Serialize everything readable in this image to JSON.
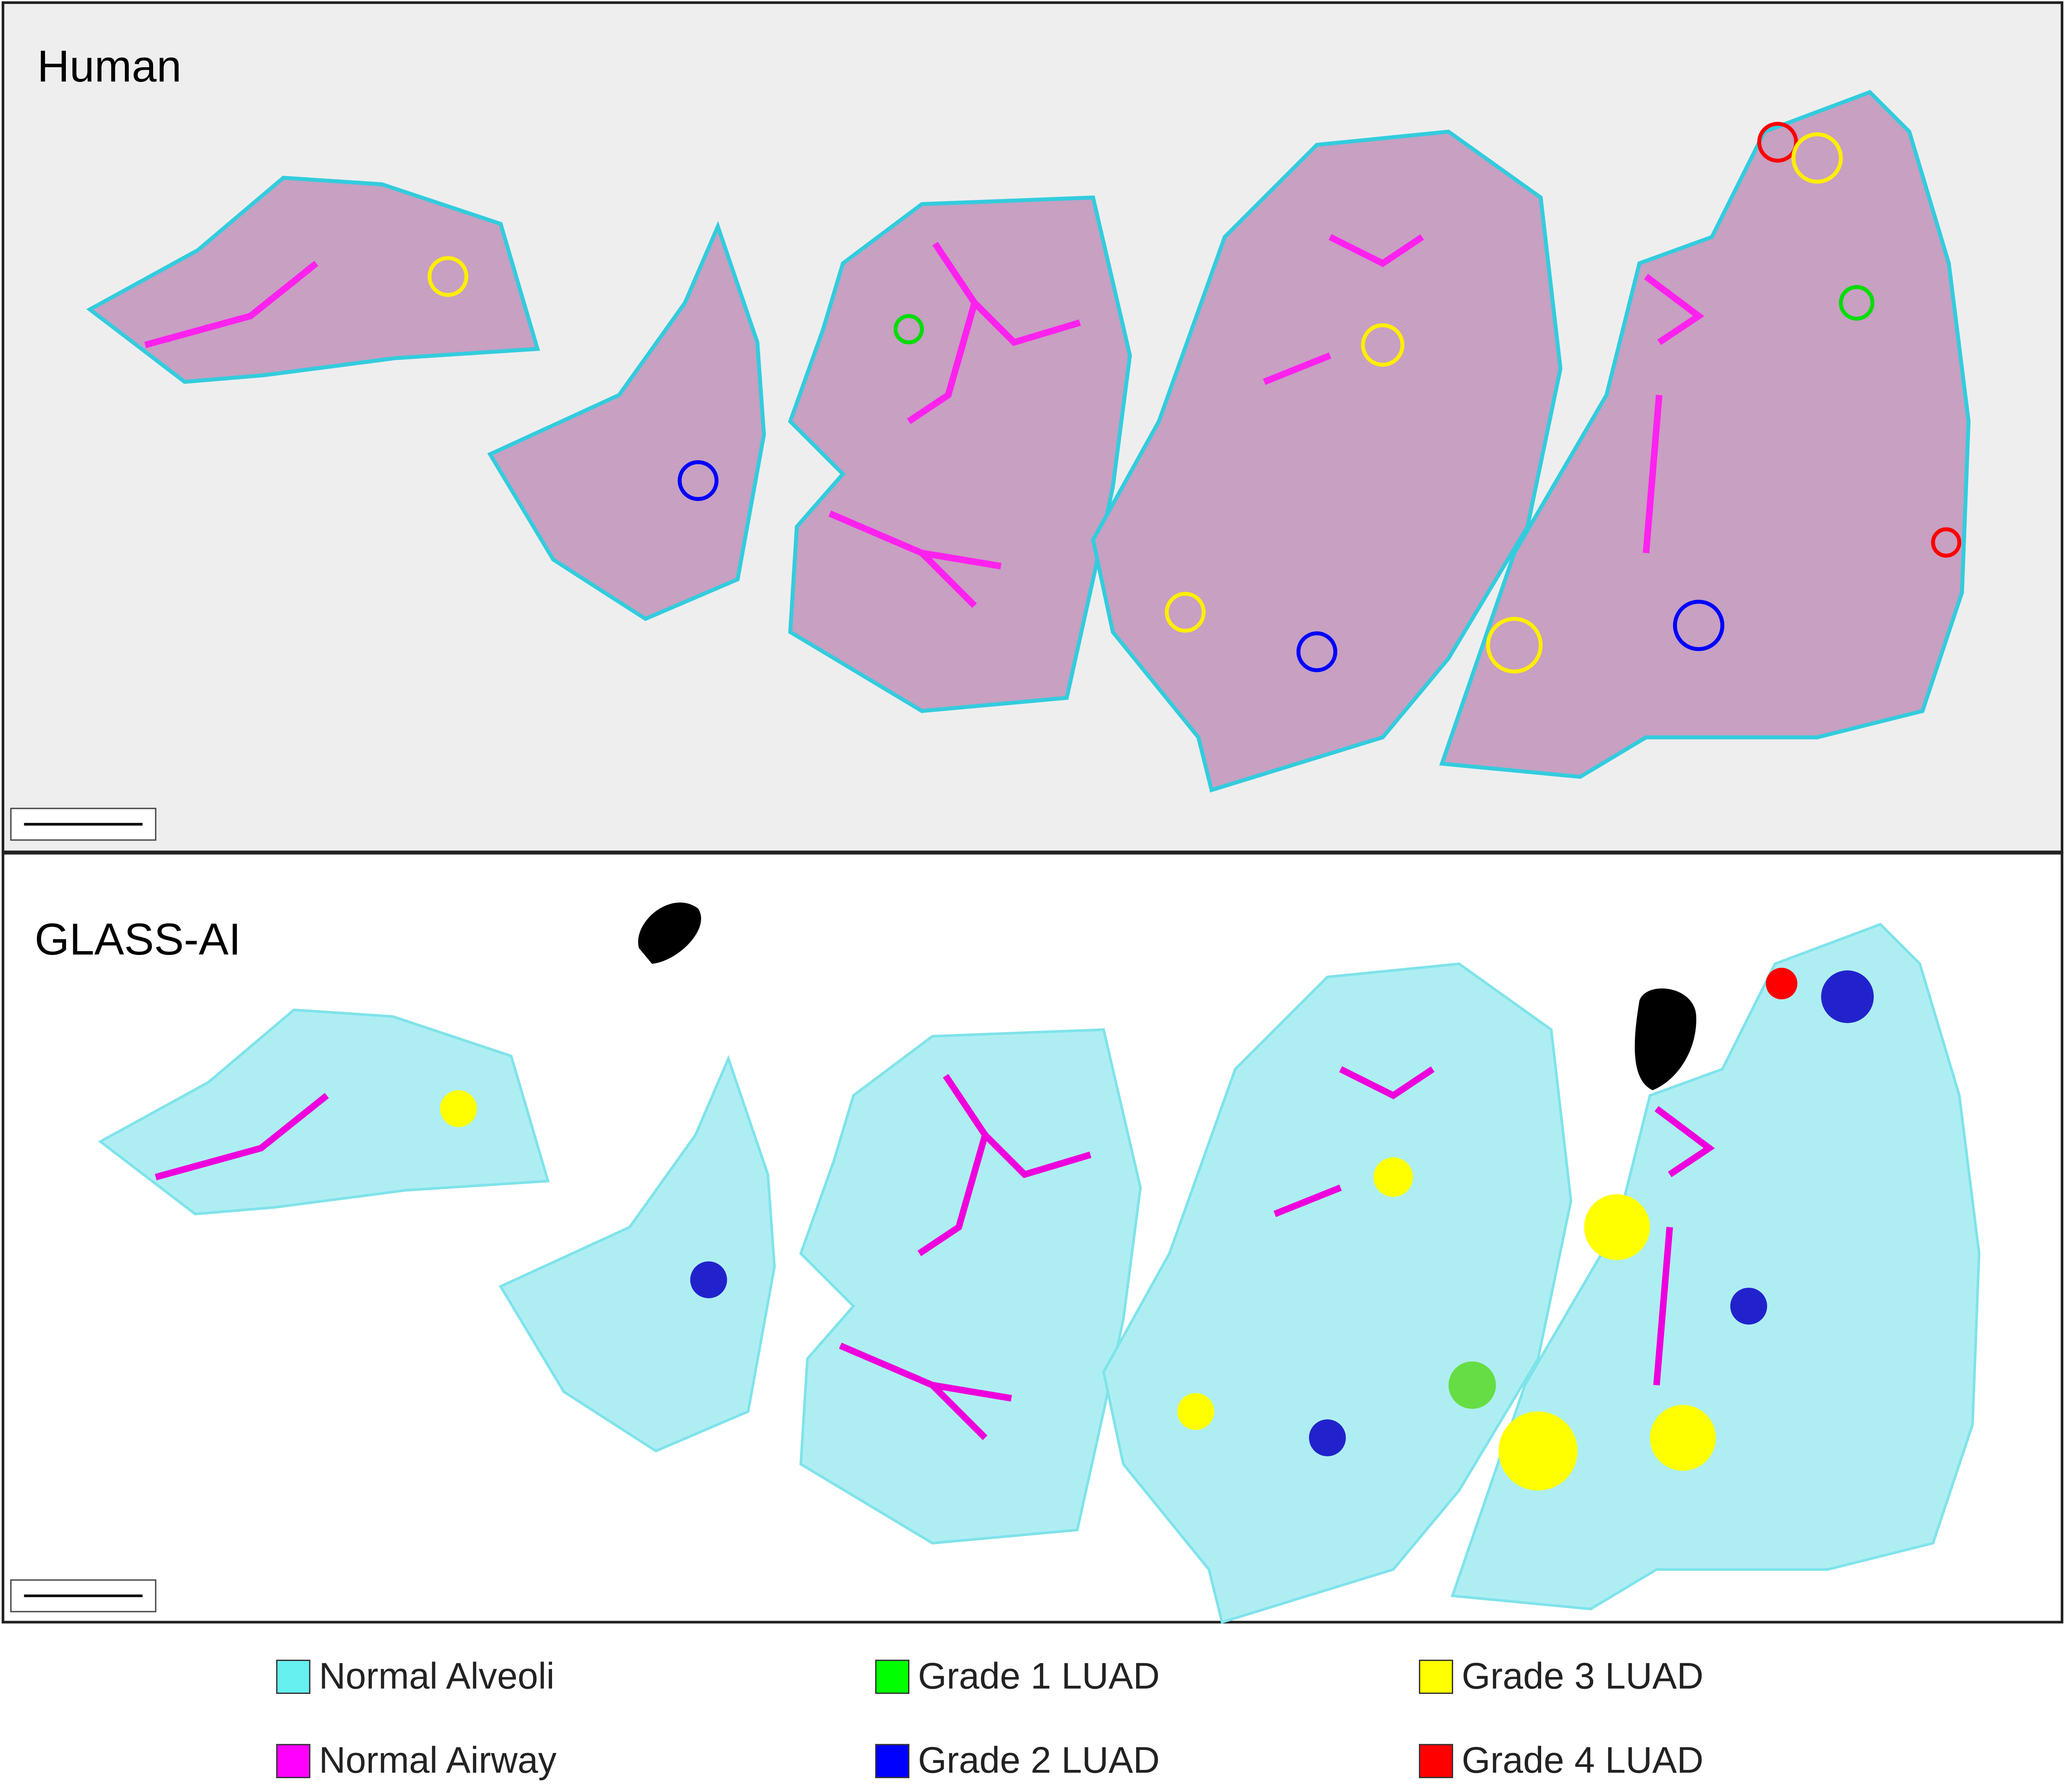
{
  "panels": [
    {
      "label": "Human"
    },
    {
      "label": "GLASS-AI"
    }
  ],
  "legend": [
    {
      "label": "Normal Alveoli",
      "color": "#66f0f0"
    },
    {
      "label": "Normal Airway",
      "color": "#ff00ff"
    },
    {
      "label": "Grade 1 LUAD",
      "color": "#00ff00"
    },
    {
      "label": "Grade 2 LUAD",
      "color": "#0000ff"
    },
    {
      "label": "Grade 3 LUAD",
      "color": "#ffff00"
    },
    {
      "label": "Grade 4 LUAD",
      "color": "#ff0000"
    }
  ]
}
